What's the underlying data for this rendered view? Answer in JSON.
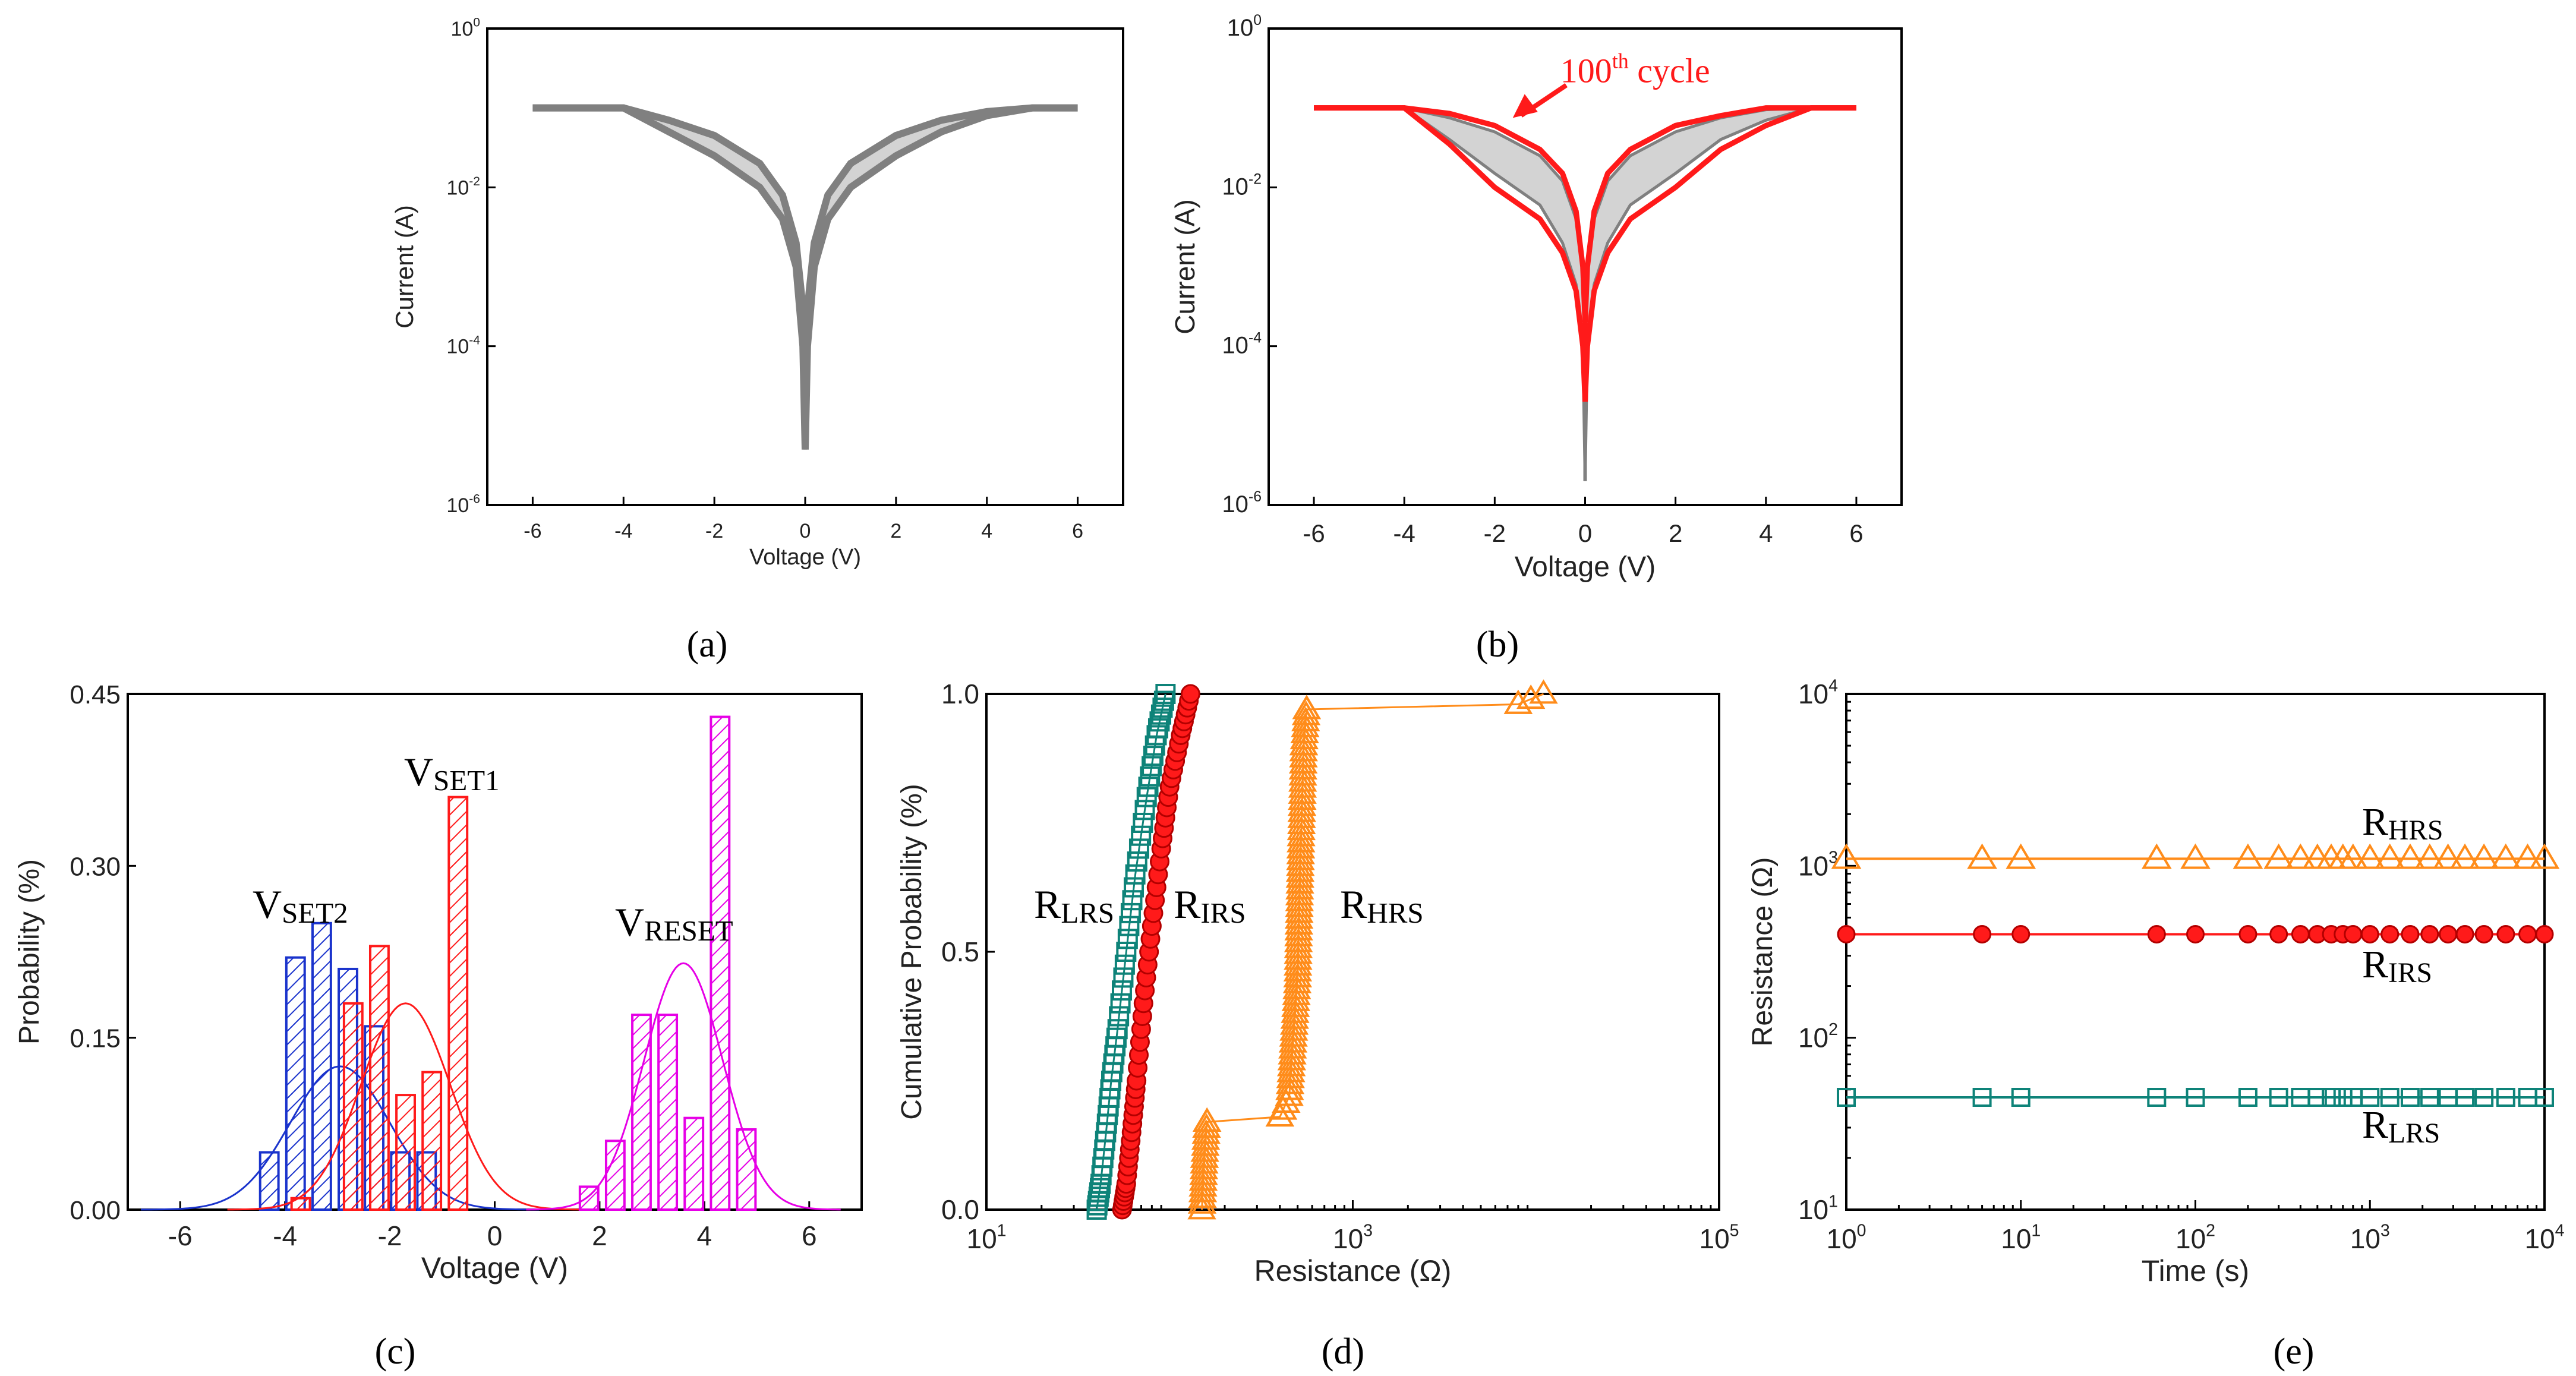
{
  "colors": {
    "gray": "#808080",
    "red": "#ff1a1a",
    "teal": "#0e8379",
    "orange": "#ff8c1a",
    "blue": "#1a33cc",
    "magenta": "#e600e6"
  },
  "chart_data": [
    {
      "id": "a",
      "type": "line",
      "panel_label": "(a)",
      "xlabel": "Voltage (V)",
      "ylabel": "Current (A)",
      "xlim": [
        -7,
        7
      ],
      "yscale": "log",
      "ylim": [
        1e-06,
        1
      ],
      "xticks": [
        "-6",
        "-4",
        "-2",
        "0",
        "2",
        "4",
        "6"
      ],
      "yticks": [
        {
          "base": "10",
          "exp": "0"
        },
        {
          "base": "10",
          "exp": "-2"
        },
        {
          "base": "10",
          "exp": "-4"
        },
        {
          "base": "10",
          "exp": "-6"
        }
      ],
      "series": [
        {
          "name": "I-V sweeps",
          "color": "gray",
          "x": [
            -6,
            -4,
            -3,
            -2,
            -1,
            -0.5,
            -0.2,
            -0.05,
            0,
            0.05,
            0.2,
            0.5,
            1,
            2,
            3,
            4,
            5,
            6
          ],
          "y_upper": [
            0.1,
            0.1,
            0.07,
            0.045,
            0.02,
            0.008,
            0.002,
            0.0003,
            3e-05,
            0.0003,
            0.002,
            0.008,
            0.02,
            0.045,
            0.07,
            0.09,
            0.1,
            0.1
          ],
          "y_lower": [
            0.1,
            0.1,
            0.05,
            0.025,
            0.01,
            0.004,
            0.001,
            0.0001,
            5e-06,
            0.0001,
            0.001,
            0.004,
            0.01,
            0.025,
            0.05,
            0.08,
            0.1,
            0.1
          ]
        }
      ]
    },
    {
      "id": "b",
      "type": "line",
      "panel_label": "(b)",
      "xlabel": "Voltage (V)",
      "ylabel": "Current (A)",
      "xlim": [
        -7,
        7
      ],
      "yscale": "log",
      "ylim": [
        1e-06,
        1
      ],
      "xticks": [
        "-6",
        "-4",
        "-2",
        "0",
        "2",
        "4",
        "6"
      ],
      "yticks": [
        {
          "base": "10",
          "exp": "0"
        },
        {
          "base": "10",
          "exp": "-2"
        },
        {
          "base": "10",
          "exp": "-4"
        },
        {
          "base": "10",
          "exp": "-6"
        }
      ],
      "annotation": {
        "text": "100",
        "sup": "th",
        "rest": " cycle"
      },
      "series": [
        {
          "name": "cycles 1-99",
          "color": "gray",
          "x": [
            -6,
            -4,
            -3,
            -2,
            -1,
            -0.5,
            -0.2,
            -0.05,
            0,
            0.05,
            0.2,
            0.5,
            1,
            2,
            3,
            4,
            5,
            6
          ],
          "y_upper": [
            0.1,
            0.1,
            0.075,
            0.05,
            0.025,
            0.012,
            0.004,
            0.0008,
            0.0001,
            0.0008,
            0.004,
            0.012,
            0.025,
            0.05,
            0.075,
            0.095,
            0.1,
            0.1
          ],
          "y_lower": [
            0.1,
            0.1,
            0.04,
            0.015,
            0.006,
            0.002,
            0.0006,
            0.0001,
            2e-06,
            0.0001,
            0.0006,
            0.002,
            0.006,
            0.015,
            0.04,
            0.07,
            0.1,
            0.1
          ]
        },
        {
          "name": "100th cycle",
          "color": "red",
          "x": [
            -6,
            -4,
            -3,
            -2,
            -1,
            -0.5,
            -0.2,
            -0.05,
            0,
            0.05,
            0.2,
            0.5,
            1,
            2,
            3,
            4,
            5,
            6
          ],
          "y_upper": [
            0.1,
            0.1,
            0.085,
            0.06,
            0.03,
            0.015,
            0.005,
            0.001,
            0.0002,
            0.001,
            0.005,
            0.015,
            0.03,
            0.06,
            0.08,
            0.1,
            0.1,
            0.1
          ],
          "y_lower": [
            0.1,
            0.1,
            0.035,
            0.01,
            0.004,
            0.0015,
            0.0005,
            0.0001,
            2e-05,
            0.0001,
            0.0005,
            0.0015,
            0.004,
            0.01,
            0.03,
            0.06,
            0.1,
            0.1
          ]
        }
      ]
    },
    {
      "id": "c",
      "type": "bar",
      "panel_label": "(c)",
      "xlabel": "Voltage (V)",
      "ylabel": "Probability (%)",
      "xlim": [
        -7,
        7
      ],
      "ylim": [
        0,
        0.45
      ],
      "xticks": [
        "-6",
        "-4",
        "-2",
        "0",
        "2",
        "4",
        "6"
      ],
      "yticks": [
        "0.00",
        "0.15",
        "0.30",
        "0.45"
      ],
      "bar_width": 0.35,
      "series": [
        {
          "name": "V",
          "sub": "SET2",
          "color": "blue",
          "x": [
            -4.3,
            -3.8,
            -3.3,
            -2.8,
            -2.3,
            -1.8,
            -1.3
          ],
          "values": [
            0.05,
            0.22,
            0.25,
            0.21,
            0.16,
            0.05,
            0.05
          ],
          "fit": {
            "mu": -2.95,
            "sigma": 0.95,
            "peak": 0.125
          }
        },
        {
          "name": "V",
          "sub": "SET1",
          "color": "red",
          "x": [
            -3.7,
            -2.7,
            -2.2,
            -1.7,
            -1.2,
            -0.7
          ],
          "values": [
            0.01,
            0.18,
            0.23,
            0.1,
            0.12,
            0.36
          ],
          "fit": {
            "mu": -1.7,
            "sigma": 0.85,
            "peak": 0.18
          }
        },
        {
          "name": "V",
          "sub": "RESET",
          "color": "magenta",
          "x": [
            1.8,
            2.3,
            2.8,
            3.3,
            3.8,
            4.3,
            4.8
          ],
          "values": [
            0.02,
            0.06,
            0.17,
            0.17,
            0.08,
            0.43,
            0.07
          ],
          "fit": {
            "mu": 3.6,
            "sigma": 0.75,
            "peak": 0.215
          }
        }
      ]
    },
    {
      "id": "d",
      "type": "scatter",
      "panel_label": "(d)",
      "xlabel": "Resistance (Ω)",
      "ylabel": "Cumulative Probability (%)",
      "xscale": "log",
      "xlim": [
        10,
        100000
      ],
      "ylim": [
        0,
        1
      ],
      "xticks": [
        {
          "base": "10",
          "exp": "1"
        },
        {
          "base": "10",
          "exp": "3"
        },
        {
          "base": "10",
          "exp": "5"
        }
      ],
      "yticks": [
        "0.0",
        "0.5",
        "1.0"
      ],
      "series": [
        {
          "name": "R",
          "sub": "LRS",
          "color": "teal",
          "marker": "square",
          "x": [
            40,
            42,
            45,
            48,
            52,
            58,
            65,
            75,
            85,
            95
          ],
          "y": [
            0.0,
            0.05,
            0.15,
            0.25,
            0.35,
            0.5,
            0.65,
            0.8,
            0.92,
            1.0
          ]
        },
        {
          "name": "R",
          "sub": "IRS",
          "color": "red",
          "marker": "circle",
          "x": [
            55,
            58,
            62,
            66,
            72,
            80,
            90,
            100,
            115,
            130
          ],
          "y": [
            0.0,
            0.05,
            0.15,
            0.25,
            0.4,
            0.55,
            0.7,
            0.82,
            0.92,
            1.0
          ]
        },
        {
          "name": "R",
          "sub": "HRS",
          "color": "orange",
          "marker": "triangle",
          "x": [
            150,
            155,
            160,
            400,
            450,
            500,
            520,
            540,
            560,
            8000,
            11000
          ],
          "y": [
            0.0,
            0.1,
            0.17,
            0.18,
            0.22,
            0.45,
            0.7,
            0.9,
            0.97,
            0.98,
            1.0
          ]
        }
      ]
    },
    {
      "id": "e",
      "type": "line",
      "panel_label": "(e)",
      "xlabel": "Time (s)",
      "ylabel": "Resistance (Ω)",
      "xscale": "log",
      "xlim": [
        1,
        10000
      ],
      "yscale": "log",
      "ylim": [
        10,
        10000
      ],
      "xticks": [
        {
          "base": "10",
          "exp": "0"
        },
        {
          "base": "10",
          "exp": "1"
        },
        {
          "base": "10",
          "exp": "2"
        },
        {
          "base": "10",
          "exp": "3"
        },
        {
          "base": "10",
          "exp": "4"
        }
      ],
      "yticks": [
        {
          "base": "10",
          "exp": "1"
        },
        {
          "base": "10",
          "exp": "2"
        },
        {
          "base": "10",
          "exp": "3"
        },
        {
          "base": "10",
          "exp": "4"
        }
      ],
      "series": [
        {
          "name": "R",
          "sub": "HRS",
          "color": "orange",
          "marker": "triangle",
          "value": 1100,
          "x_marks": [
            1,
            6,
            10,
            60,
            100,
            200,
            300,
            400,
            500,
            600,
            700,
            800,
            1000,
            1300,
            1700,
            2200,
            2800,
            3500,
            4500,
            6000,
            8000,
            10000
          ]
        },
        {
          "name": "R",
          "sub": "IRS",
          "color": "red",
          "marker": "circle",
          "value": 400,
          "x_marks": [
            1,
            6,
            10,
            60,
            100,
            200,
            300,
            400,
            500,
            600,
            700,
            800,
            1000,
            1300,
            1700,
            2200,
            2800,
            3500,
            4500,
            6000,
            8000,
            10000
          ]
        },
        {
          "name": "R",
          "sub": "LRS",
          "color": "teal",
          "marker": "square",
          "value": 45,
          "x_marks": [
            1,
            6,
            10,
            60,
            100,
            200,
            300,
            400,
            500,
            600,
            700,
            800,
            1000,
            1300,
            1700,
            2200,
            2800,
            3500,
            4500,
            6000,
            8000,
            10000
          ]
        }
      ]
    }
  ]
}
